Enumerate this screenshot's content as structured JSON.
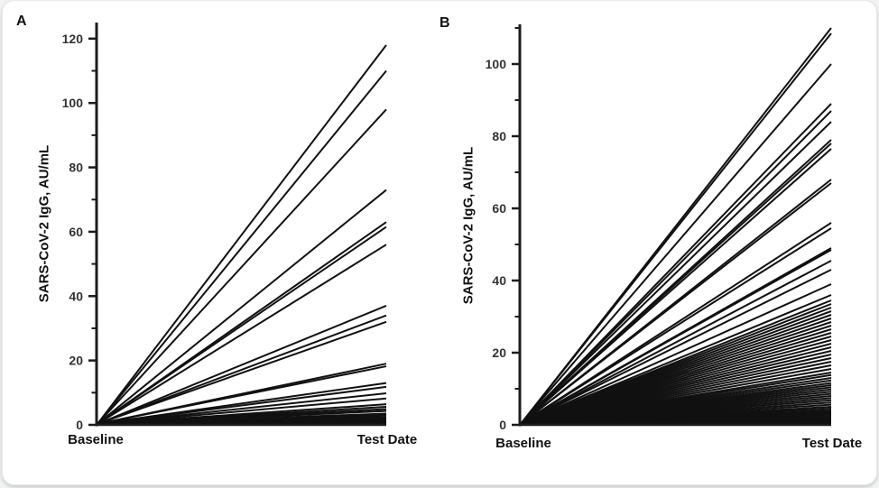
{
  "page": {
    "background_color": "#f2f3f3",
    "card_color": "#ffffff",
    "line_color": "#111111",
    "axis_color": "#1c1c1c",
    "tick_label_color": "#333333"
  },
  "chart_data": [
    {
      "type": "line",
      "panel_label": "A",
      "ylabel": "SARS-CoV-2 IgG, AU/mL",
      "x_categories": [
        "Baseline",
        "Test Date"
      ],
      "ylim": [
        0,
        125
      ],
      "major_ticks": [
        0,
        20,
        40,
        60,
        80,
        100,
        120
      ],
      "minor_ticks": [
        10,
        30,
        50,
        70,
        90,
        110
      ],
      "grid": false,
      "legend": "none",
      "description": "Individual subject trajectories of SARS-CoV-2 IgG from 0 AU/mL at Baseline to measured titer at Test Date",
      "baseline_value": 0,
      "test_date_values": [
        118,
        110,
        98,
        73,
        63,
        61.5,
        56,
        37,
        34,
        32,
        19,
        18.2,
        13,
        11.8,
        9.8,
        8.2,
        6.4,
        5.6,
        4.9,
        4.3,
        3.5,
        3.0,
        2.5,
        2.0,
        1.6,
        1.2,
        0.9,
        0.6,
        0.4,
        0.2
      ]
    },
    {
      "type": "line",
      "panel_label": "B",
      "ylabel": "SARS-CoV-2 IgG, AU/mL",
      "x_categories": [
        "Baseline",
        "Test Date"
      ],
      "ylim": [
        0,
        111
      ],
      "major_ticks": [
        0,
        20,
        40,
        60,
        80,
        100
      ],
      "minor_ticks": [
        10,
        30,
        50,
        70,
        90,
        110
      ],
      "grid": false,
      "legend": "none",
      "description": "Individual subject trajectories of SARS-CoV-2 IgG from 0 AU/mL at Baseline to measured titer at Test Date",
      "baseline_value": 0,
      "test_date_values": [
        110,
        108.5,
        100,
        89,
        87,
        84,
        79,
        78,
        76.5,
        68,
        67,
        56,
        54.5,
        49,
        48.5,
        45.5,
        43,
        39,
        36,
        34.5,
        33.5,
        32.5,
        31.5,
        30.5,
        29.5,
        28.5,
        27.5,
        26.5,
        25.5,
        24.5,
        23.5,
        22.5,
        21.5,
        20.5,
        19.5,
        18.5,
        17.5,
        16.5,
        15.5,
        14.5,
        13.8,
        13,
        12.3,
        11.6,
        11,
        10.4,
        9.8,
        9.2,
        8.6,
        8,
        7.4,
        6.8,
        6.2,
        5.6,
        5,
        4.5,
        4,
        3.6,
        3.2,
        2.8,
        2.4,
        2,
        1.7,
        1.4,
        1.1,
        0.8,
        0.6,
        0.4,
        0.2
      ]
    }
  ]
}
